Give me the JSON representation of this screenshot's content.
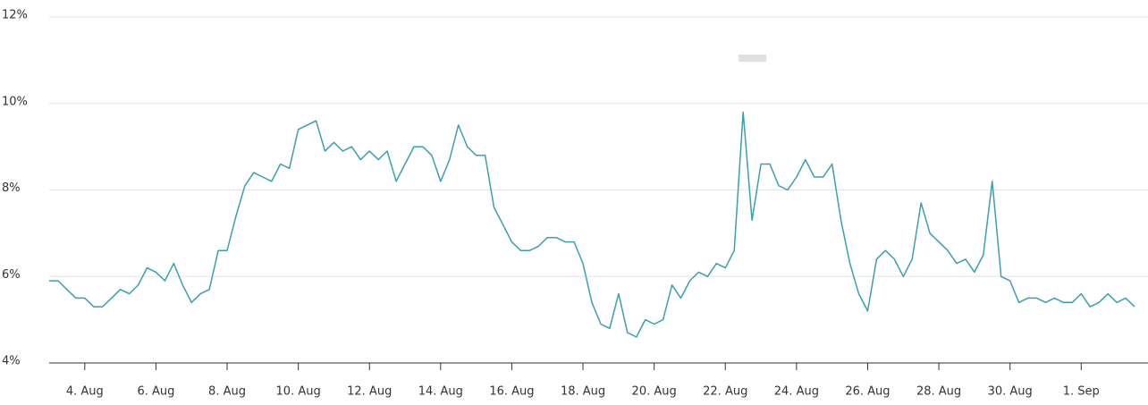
{
  "chart_data": {
    "type": "line",
    "categories": [
      null,
      null,
      null,
      null,
      "4. Aug",
      null,
      null,
      null,
      null,
      null,
      null,
      null,
      "6. Aug",
      null,
      null,
      null,
      null,
      null,
      null,
      null,
      "8. Aug",
      null,
      null,
      null,
      null,
      null,
      null,
      null,
      "10. Aug",
      null,
      null,
      null,
      null,
      null,
      null,
      null,
      "12. Aug",
      null,
      null,
      null,
      null,
      null,
      null,
      null,
      "14. Aug",
      null,
      null,
      null,
      null,
      null,
      null,
      null,
      "16. Aug",
      null,
      null,
      null,
      null,
      null,
      null,
      null,
      "18. Aug",
      null,
      null,
      null,
      null,
      null,
      null,
      null,
      "20. Aug",
      null,
      null,
      null,
      null,
      null,
      null,
      null,
      "22. Aug",
      null,
      null,
      null,
      null,
      null,
      null,
      null,
      "24. Aug",
      null,
      null,
      null,
      null,
      null,
      null,
      null,
      "26. Aug",
      null,
      null,
      null,
      null,
      null,
      null,
      null,
      "28. Aug",
      null,
      null,
      null,
      null,
      null,
      null,
      null,
      "30. Aug",
      null,
      null,
      null,
      null,
      null,
      null,
      null,
      "1. Sep",
      null,
      null,
      null,
      null,
      null,
      null
    ],
    "values": [
      5.9,
      5.9,
      5.7,
      5.5,
      5.5,
      5.3,
      5.3,
      5.5,
      5.7,
      5.6,
      5.8,
      6.2,
      6.1,
      5.9,
      6.3,
      5.8,
      5.4,
      5.6,
      5.7,
      6.6,
      6.6,
      7.4,
      8.1,
      8.4,
      8.3,
      8.2,
      8.6,
      8.5,
      9.4,
      9.5,
      9.6,
      8.9,
      9.1,
      8.9,
      9.0,
      8.7,
      8.9,
      8.7,
      8.9,
      8.2,
      8.6,
      9.0,
      9.0,
      8.8,
      8.2,
      8.7,
      9.5,
      9.0,
      8.8,
      8.8,
      7.6,
      7.2,
      6.8,
      6.6,
      6.6,
      6.7,
      6.9,
      6.9,
      6.8,
      6.8,
      6.3,
      5.4,
      4.9,
      4.8,
      5.6,
      4.7,
      4.6,
      5.0,
      4.9,
      5.0,
      5.8,
      5.5,
      5.9,
      6.1,
      6.0,
      6.3,
      6.2,
      6.6,
      9.8,
      7.3,
      8.6,
      8.6,
      8.1,
      8.0,
      8.3,
      8.7,
      8.3,
      8.3,
      8.6,
      7.3,
      6.3,
      5.6,
      5.2,
      6.4,
      6.6,
      6.4,
      6.0,
      6.4,
      7.7,
      7.0,
      6.8,
      6.6,
      6.3,
      6.4,
      6.1,
      6.5,
      8.2,
      6.0,
      5.9,
      5.4,
      5.5,
      5.5,
      5.4,
      5.5,
      5.4,
      5.4,
      5.6,
      5.3,
      5.4,
      5.6,
      5.4,
      5.5,
      5.3
    ],
    "color": "#3a9fb0",
    "ylim": [
      4,
      12
    ],
    "yticks": [
      {
        "value": 4,
        "label": "4%"
      },
      {
        "value": 6,
        "label": "6%"
      },
      {
        "value": 8,
        "label": "8%"
      },
      {
        "value": 10,
        "label": "10%"
      },
      {
        "value": 12,
        "label": "12%"
      }
    ],
    "grid": true
  }
}
